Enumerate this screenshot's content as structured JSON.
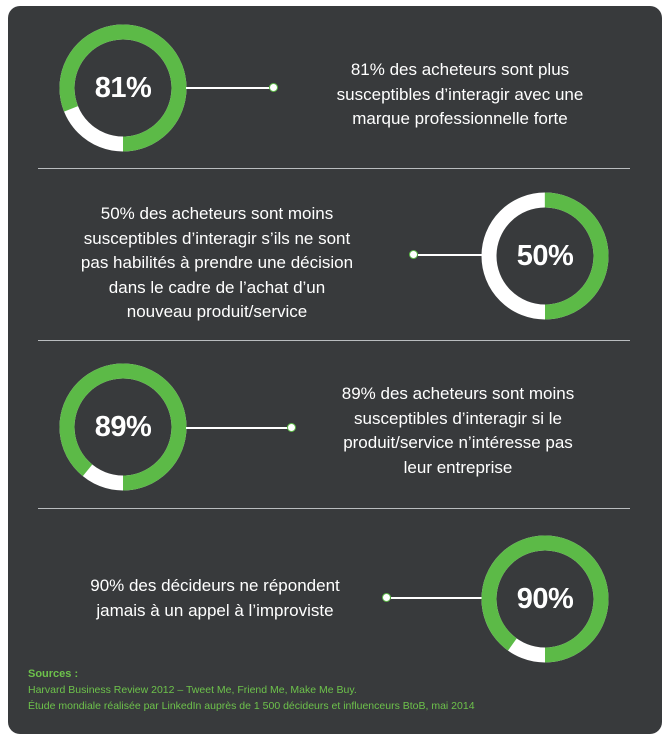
{
  "colors": {
    "background": "#383a3c",
    "accent": "#5cba47",
    "ring_remainder": "#ffffff",
    "text": "#ffffff",
    "divider": "#b9bcbf",
    "sources": "#6dc24b"
  },
  "stats": [
    {
      "value_label": "81%",
      "text": [
        "81% des acheteurs sont plus",
        "susceptibles d’interagir avec une",
        "marque professionnelle forte"
      ]
    },
    {
      "value_label": "50%",
      "text": [
        "50% des acheteurs sont moins",
        "susceptibles d’interagir s’ils ne sont",
        "pas habilités à prendre une décision",
        "dans le cadre de l’achat d’un",
        "nouveau produit/service"
      ]
    },
    {
      "value_label": "89%",
      "text": [
        "89% des acheteurs sont moins",
        "susceptibles d’interagir si le",
        "produit/service n’intéresse pas",
        "leur entreprise"
      ]
    },
    {
      "value_label": "90%",
      "text": [
        "90% des décideurs ne répondent",
        "jamais à un appel à l’improviste"
      ]
    }
  ],
  "chart_data": {
    "type": "pie",
    "style": "donut",
    "categories": [
      "81%",
      "50%",
      "89%",
      "90%"
    ],
    "values": [
      81,
      50,
      89,
      90
    ],
    "max": 100
  },
  "sources": {
    "title": "Sources :",
    "lines": [
      "Harvard Business Review 2012 – Tweet Me, Friend Me, Make Me Buy.",
      "Étude mondiale réalisée par LinkedIn auprès de 1 500 décideurs et influenceurs BtoB, mai 2014"
    ]
  }
}
